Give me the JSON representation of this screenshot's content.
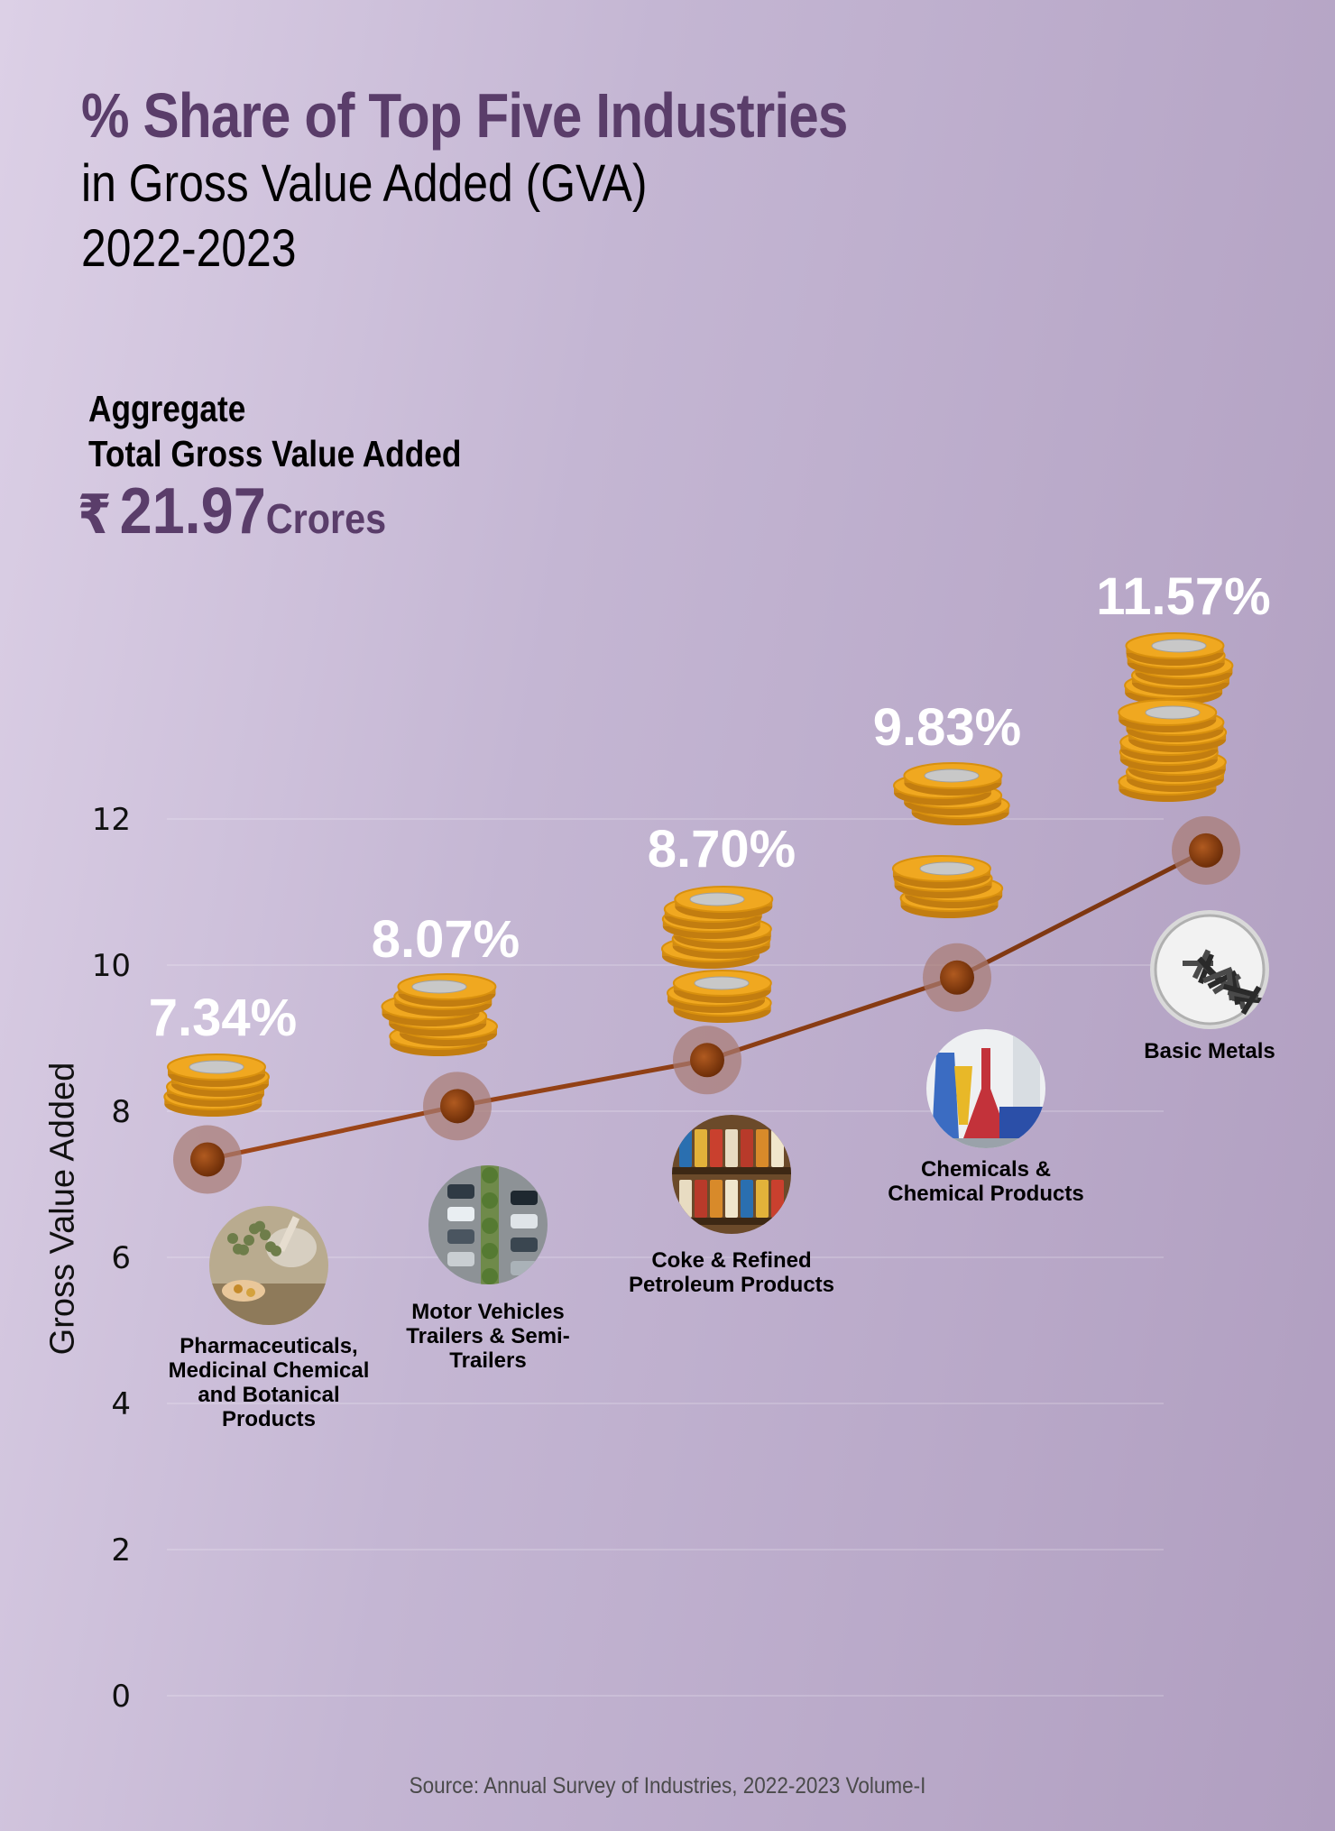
{
  "title": {
    "main": "% Share of Top Five Industries",
    "sub1": "in Gross Value Added (GVA)",
    "sub2": "2022-2023"
  },
  "aggregate": {
    "line1": "Aggregate",
    "line2": "Total Gross Value Added",
    "currency": "₹",
    "value": "21.97",
    "unit": "Crores"
  },
  "source": "Source: Annual Survey of Industries, 2022-2023 Volume-I",
  "colors": {
    "title": "#5a3d6a",
    "line": "#8a3e10",
    "marker": "#8a3e10",
    "halo": "#a87a72",
    "coin": "#f0a820",
    "coin_face": "#c8c8c8",
    "value_label": "#ffffff"
  },
  "icons": [
    "coin-stack-icon",
    "pharma-herbs-icon",
    "parking-cars-icon",
    "shelf-products-icon",
    "lab-flasks-icon",
    "metal-nails-icon"
  ],
  "chart_data": {
    "type": "line",
    "categories": [
      "Pharmaceuticals, Medicinal Chemical and Botanical Products",
      "Motor Vehicles Trailers & Semi-Trailers",
      "Coke & Refined Petroleum Products",
      "Chemicals & Chemical Products",
      "Basic Metals"
    ],
    "category_lines": [
      [
        "Pharmaceuticals,",
        "Medicinal Chemical",
        "and Botanical",
        "Products"
      ],
      [
        "Motor Vehicles",
        "Trailers & Semi-",
        "Trailers"
      ],
      [
        "Coke & Refined",
        "Petroleum Products"
      ],
      [
        "Chemicals &",
        "Chemical Products"
      ],
      [
        "Basic Metals"
      ]
    ],
    "values": [
      7.34,
      8.07,
      8.7,
      9.83,
      11.57
    ],
    "value_labels": [
      "7.34%",
      "8.07%",
      "8.70%",
      "9.83%",
      "11.57%"
    ],
    "ylabel": "Gross Value Added",
    "ylim": [
      0,
      12
    ],
    "yticks": [
      0,
      2,
      4,
      6,
      8,
      10,
      12
    ],
    "grid": true,
    "legend": "none"
  }
}
